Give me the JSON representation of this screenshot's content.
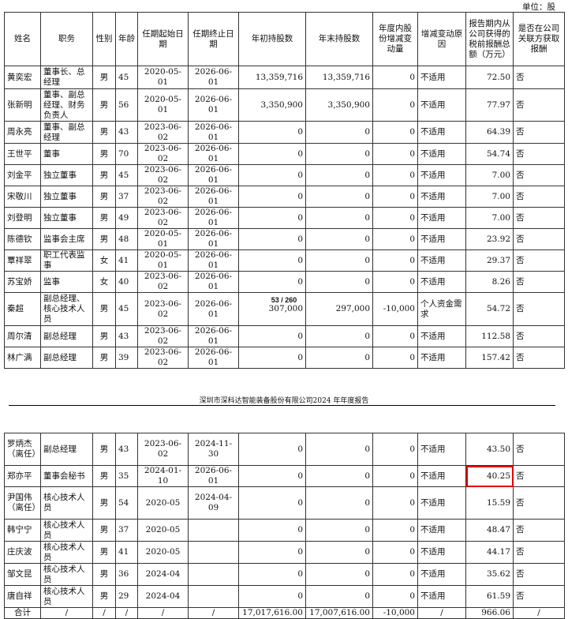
{
  "unit_label": "单位：股",
  "columns": [
    "姓名",
    "职务",
    "性别",
    "年龄",
    "任期起始日期",
    "任期终止日期",
    "年初持股数",
    "年末持股数",
    "年度内股份增减变动量",
    "增减变动原因",
    "报告期内从公司获得的税前报酬总额（万元）",
    "是否在公司关联方获取报酬"
  ],
  "page1_rows": [
    [
      "黄奕宏",
      "董事长、总经理",
      "男",
      "45",
      "2020-05-01",
      "2026-06-01",
      "13,359,716",
      "13,359,716",
      "0",
      "不适用",
      "72.50",
      "否"
    ],
    [
      "张新明",
      "董事、副总经理、财务负责人",
      "男",
      "56",
      "2020-05-01",
      "2026-06-01",
      "3,350,900",
      "3,350,900",
      "0",
      "不适用",
      "77.97",
      "否"
    ],
    [
      "周永亮",
      "董事、副总经理",
      "男",
      "43",
      "2023-06-02",
      "2026-06-01",
      "0",
      "0",
      "0",
      "不适用",
      "64.39",
      "否"
    ],
    [
      "王世平",
      "董事",
      "男",
      "70",
      "2023-06-02",
      "2026-06-01",
      "0",
      "0",
      "0",
      "不适用",
      "54.74",
      "否"
    ],
    [
      "刘金平",
      "独立董事",
      "男",
      "45",
      "2023-06-02",
      "2026-06-01",
      "0",
      "0",
      "0",
      "不适用",
      "7.00",
      "否"
    ],
    [
      "宋敬川",
      "独立董事",
      "男",
      "37",
      "2023-06-02",
      "2026-06-01",
      "0",
      "0",
      "0",
      "不适用",
      "7.00",
      "否"
    ],
    [
      "刘登明",
      "独立董事",
      "男",
      "49",
      "2023-06-02",
      "2026-06-01",
      "0",
      "0",
      "0",
      "不适用",
      "7.00",
      "否"
    ],
    [
      "陈德钦",
      "监事会主席",
      "男",
      "48",
      "2020-05-01",
      "2026-06-01",
      "0",
      "0",
      "0",
      "不适用",
      "23.92",
      "否"
    ],
    [
      "覃祥翠",
      "职工代表监事",
      "女",
      "41",
      "2020-05-01",
      "2026-06-01",
      "0",
      "0",
      "0",
      "不适用",
      "29.37",
      "否"
    ],
    [
      "苏宝娇",
      "监事",
      "女",
      "40",
      "2023-06-02",
      "2026-06-01",
      "0",
      "0",
      "0",
      "不适用",
      "8.26",
      "否"
    ],
    [
      "秦超",
      "副总经理、核心技术人员",
      "男",
      "45",
      "2023-06-02",
      "2026-06-01",
      "307,000",
      "297,000",
      "-10,000",
      "个人资金需求",
      "54.72",
      "否"
    ],
    [
      "周尔清",
      "副总经理",
      "男",
      "43",
      "2023-06-02",
      "2026-06-01",
      "0",
      "0",
      "0",
      "不适用",
      "112.58",
      "否"
    ],
    [
      "林广满",
      "副总经理",
      "男",
      "39",
      "2023-06-02",
      "2026-06-01",
      "0",
      "0",
      "0",
      "不适用",
      "157.42",
      "否"
    ]
  ],
  "page_number": "53 / 260",
  "running_header": "深圳市深科达智能装备股份有限公司2024 年年度报告",
  "page2_rows": [
    [
      "罗炳杰（离任）",
      "副总经理",
      "男",
      "43",
      "2023-06-02",
      "2024-11-30",
      "0",
      "0",
      "0",
      "不适用",
      "43.50",
      "否"
    ],
    [
      "郑亦平",
      "董事会秘书",
      "男",
      "35",
      "2024-01-10",
      "2026-06-01",
      "0",
      "0",
      "0",
      "不适用",
      "40.25",
      "否"
    ],
    [
      "尹国伟（离任）",
      "核心技术人员",
      "男",
      "54",
      "2020-05",
      "2024-04-09",
      "0",
      "0",
      "0",
      "不适用",
      "15.59",
      "否"
    ],
    [
      "韩宁宁",
      "核心技术人员",
      "男",
      "37",
      "2020-05",
      "",
      "0",
      "0",
      "0",
      "不适用",
      "48.47",
      "否"
    ],
    [
      "庄庆波",
      "核心技术人员",
      "男",
      "41",
      "2020-05",
      "",
      "0",
      "0",
      "0",
      "不适用",
      "44.17",
      "否"
    ],
    [
      "邹文昆",
      "核心技术人员",
      "男",
      "36",
      "2024-04",
      "",
      "0",
      "0",
      "0",
      "不适用",
      "35.62",
      "否"
    ],
    [
      "唐自祥",
      "核心技术人员",
      "男",
      "29",
      "2024-04",
      "",
      "0",
      "0",
      "0",
      "不适用",
      "61.59",
      "否"
    ]
  ],
  "total_row": [
    "合计",
    "/",
    "/",
    "/",
    "/",
    "/",
    "17,017,616.00",
    "17,007,616.00",
    "-10,000",
    "/",
    "966.06",
    "/"
  ],
  "highlighted_cell": {
    "row": "郑亦平",
    "value": "40.25",
    "color": "#e00000"
  }
}
